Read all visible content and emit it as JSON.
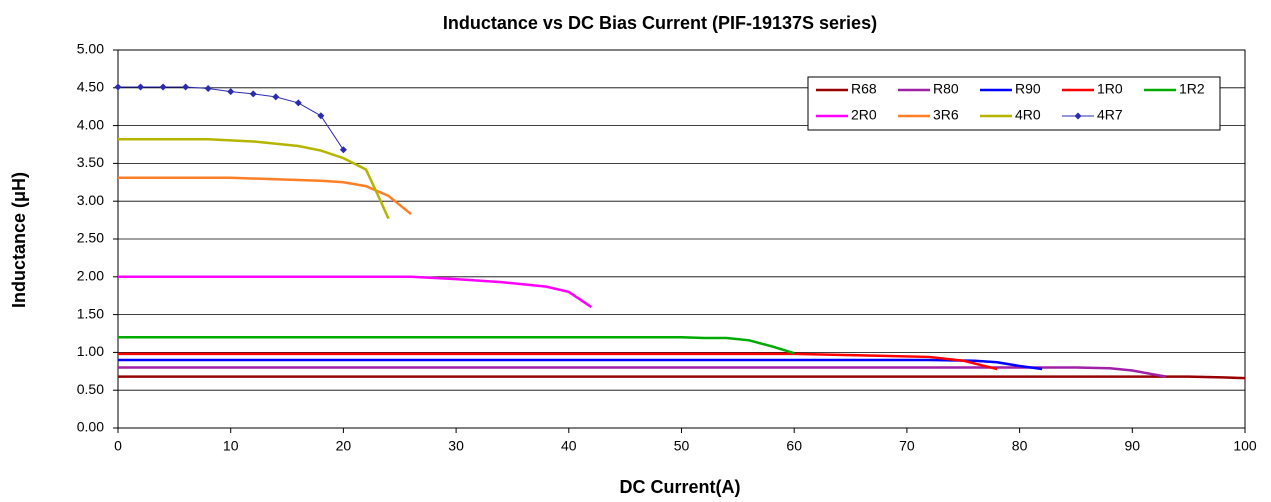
{
  "chart_data": {
    "type": "line",
    "title": "Inductance vs DC Bias Current (PIF-19137S series)",
    "x_label": "DC Current(A)",
    "y_label": "Inductance (μH)",
    "xlim": [
      0,
      100
    ],
    "xticks": [
      0,
      10,
      20,
      30,
      40,
      50,
      60,
      70,
      80,
      90,
      100
    ],
    "ylim": [
      0,
      5
    ],
    "yticks": [
      {
        "value": 0,
        "label": "0.00"
      },
      {
        "value": 0.5,
        "label": "0.50"
      },
      {
        "value": 1,
        "label": "1.00"
      },
      {
        "value": 1.5,
        "label": "1.50"
      },
      {
        "value": 2,
        "label": "2.00"
      },
      {
        "value": 2.5,
        "label": "2.50"
      },
      {
        "value": 3,
        "label": "3.00"
      },
      {
        "value": 3.5,
        "label": "3.50"
      },
      {
        "value": 4,
        "label": "4.00"
      },
      {
        "value": 4.5,
        "label": "4.50"
      },
      {
        "value": 5,
        "label": "5.00"
      }
    ],
    "grid": true,
    "legend": "upper right",
    "series": [
      {
        "name": "R68",
        "color": "#990000",
        "x": [
          0,
          20,
          40,
          60,
          80,
          90,
          95,
          98,
          100
        ],
        "values": [
          0.68,
          0.68,
          0.68,
          0.68,
          0.68,
          0.68,
          0.68,
          0.67,
          0.66
        ]
      },
      {
        "name": "R80",
        "color": "#a020a8",
        "x": [
          0,
          20,
          40,
          60,
          80,
          85,
          88,
          90,
          93
        ],
        "values": [
          0.8,
          0.8,
          0.8,
          0.8,
          0.8,
          0.8,
          0.79,
          0.76,
          0.68
        ]
      },
      {
        "name": "R90",
        "color": "#0000ff",
        "x": [
          0,
          20,
          40,
          60,
          72,
          76,
          78,
          80,
          82
        ],
        "values": [
          0.9,
          0.9,
          0.9,
          0.9,
          0.9,
          0.89,
          0.87,
          0.82,
          0.78
        ]
      },
      {
        "name": "1R0",
        "color": "#ff0000",
        "x": [
          0,
          20,
          40,
          60,
          66,
          72,
          75,
          78
        ],
        "values": [
          0.98,
          0.98,
          0.98,
          0.98,
          0.96,
          0.94,
          0.89,
          0.78
        ]
      },
      {
        "name": "1R2",
        "color": "#00aa00",
        "x": [
          0,
          20,
          40,
          50,
          52,
          54,
          56,
          58,
          60
        ],
        "values": [
          1.2,
          1.2,
          1.2,
          1.2,
          1.19,
          1.19,
          1.16,
          1.08,
          0.99
        ]
      },
      {
        "name": "2R0",
        "color": "#ff00ff",
        "x": [
          0,
          10,
          20,
          26,
          30,
          34,
          38,
          40,
          42
        ],
        "values": [
          2.0,
          2.0,
          2.0,
          2.0,
          1.97,
          1.93,
          1.87,
          1.8,
          1.6
        ]
      },
      {
        "name": "3R6",
        "color": "#ff7f27",
        "x": [
          0,
          10,
          14,
          18,
          20,
          22,
          24,
          26
        ],
        "values": [
          3.31,
          3.31,
          3.29,
          3.27,
          3.25,
          3.2,
          3.07,
          2.83
        ]
      },
      {
        "name": "4R0",
        "color": "#b5b500",
        "x": [
          0,
          8,
          12,
          16,
          18,
          20,
          22,
          23,
          24
        ],
        "values": [
          3.82,
          3.82,
          3.79,
          3.73,
          3.67,
          3.57,
          3.42,
          3.1,
          2.77
        ]
      },
      {
        "name": "4R7",
        "color": "#2b2bb0",
        "markers": true,
        "x": [
          0,
          2,
          4,
          6,
          8,
          10,
          12,
          14,
          16,
          18,
          20
        ],
        "values": [
          4.51,
          4.51,
          4.51,
          4.51,
          4.49,
          4.45,
          4.42,
          4.38,
          4.3,
          4.13,
          3.68
        ]
      }
    ]
  }
}
